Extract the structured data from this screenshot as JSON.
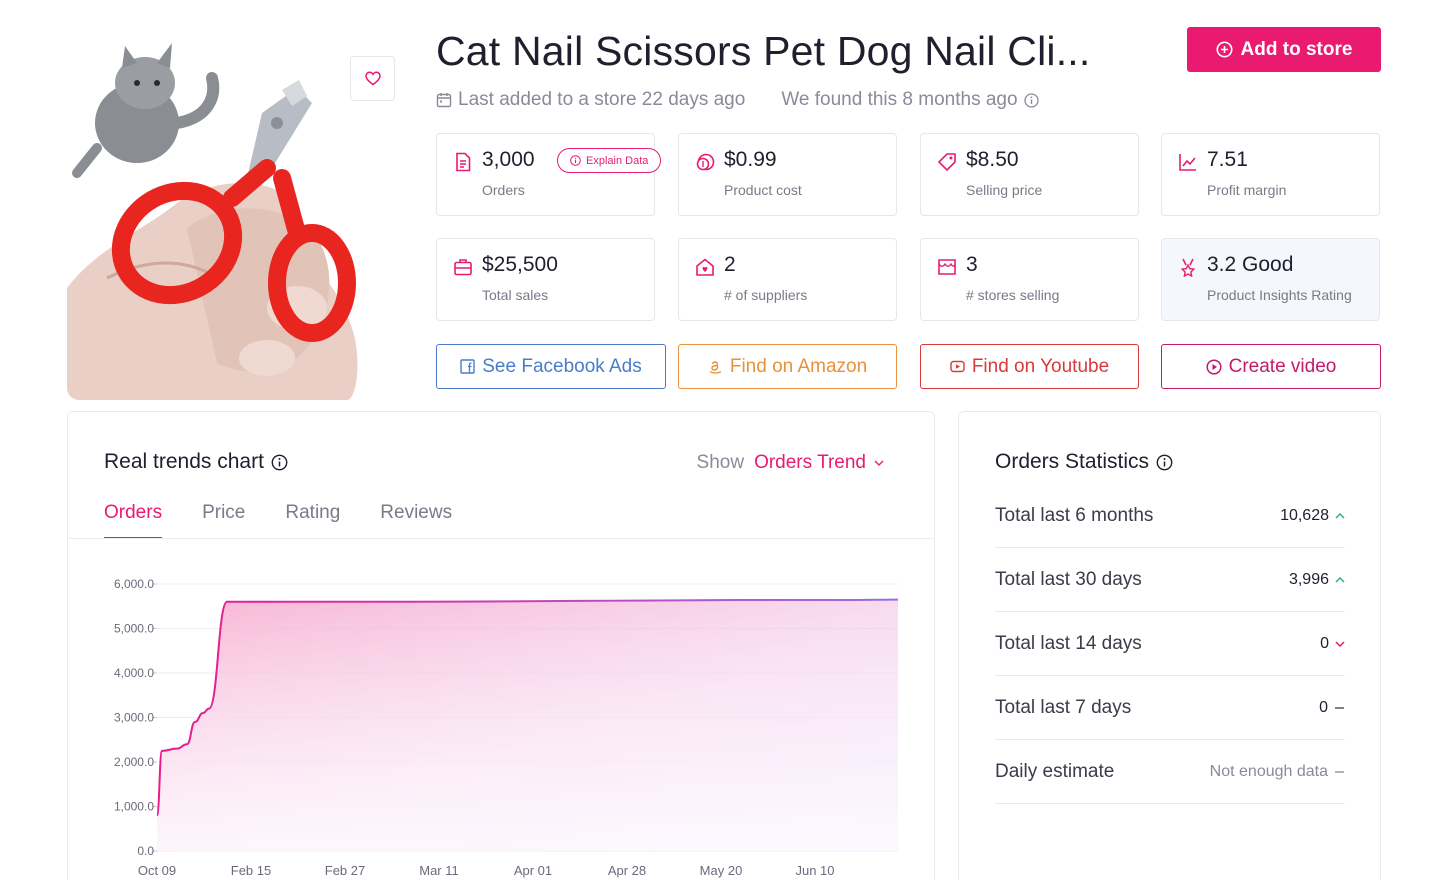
{
  "product": {
    "title": "Cat Nail Scissors Pet Dog Nail Cli...",
    "last_added": "Last added to a store 22 days ago",
    "found": "We found this 8 months ago",
    "add_button": "Add to store"
  },
  "stats": [
    {
      "id": "orders",
      "value": "3,000",
      "label": "Orders",
      "icon": "document-icon"
    },
    {
      "id": "product-cost",
      "value": "$0.99",
      "label": "Product cost",
      "icon": "coins-icon"
    },
    {
      "id": "selling-price",
      "value": "$8.50",
      "label": "Selling price",
      "icon": "price-tag-icon"
    },
    {
      "id": "profit-margin",
      "value": "7.51",
      "label": "Profit margin",
      "icon": "trend-icon"
    },
    {
      "id": "total-sales",
      "value": "$25,500",
      "label": "Total sales",
      "icon": "briefcase-icon"
    },
    {
      "id": "suppliers",
      "value": "2",
      "label": "# of suppliers",
      "icon": "house-icon"
    },
    {
      "id": "stores-selling",
      "value": "3",
      "label": "# stores selling",
      "icon": "storefront-icon"
    },
    {
      "id": "insights-rating",
      "value": "3.2 Good",
      "label": "Product Insights Rating",
      "icon": "award-icon"
    }
  ],
  "explain_label": "Explain Data",
  "actions": {
    "facebook": "See Facebook Ads",
    "amazon": "Find on Amazon",
    "youtube": "Find on Youtube",
    "video": "Create video"
  },
  "colors": {
    "accent": "#ea1a71",
    "facebook": "#4a7dc9",
    "amazon": "#e8913a",
    "youtube": "#d93a3a",
    "video": "#c41a6b"
  },
  "trends": {
    "title": "Real trends chart",
    "show_label": "Show",
    "show_value": "Orders Trend",
    "tabs": [
      "Orders",
      "Price",
      "Rating",
      "Reviews"
    ],
    "active_tab": "Orders"
  },
  "chart_data": {
    "type": "area",
    "x_tick_labels": [
      "Oct 09",
      "Feb 15",
      "Feb 27",
      "Mar 11",
      "Apr 01",
      "Apr 28",
      "May 20",
      "Jun 10"
    ],
    "y_tick_labels": [
      "0.0",
      "1,000.0",
      "2,000.0",
      "3,000.0",
      "4,000.0",
      "5,000.0",
      "6,000.0"
    ],
    "ylim": [
      0,
      6000
    ],
    "series": [
      {
        "values": [
          800,
          2250,
          2300,
          2400,
          2900,
          3100,
          3200,
          5600,
          5600,
          5600,
          5610,
          5620,
          5630,
          5640,
          5640,
          5640,
          5650
        ]
      }
    ],
    "grid": true,
    "legend": "none"
  },
  "order_stats": {
    "title": "Orders Statistics",
    "rows": [
      {
        "name": "Total last 6 months",
        "value": "10,628",
        "trend": "up"
      },
      {
        "name": "Total last 30 days",
        "value": "3,996",
        "trend": "up"
      },
      {
        "name": "Total last 14 days",
        "value": "0",
        "trend": "down"
      },
      {
        "name": "Total last 7 days",
        "value": "0",
        "trend": "flat"
      },
      {
        "name": "Daily estimate",
        "value": "Not enough data",
        "trend": "flat"
      }
    ]
  }
}
